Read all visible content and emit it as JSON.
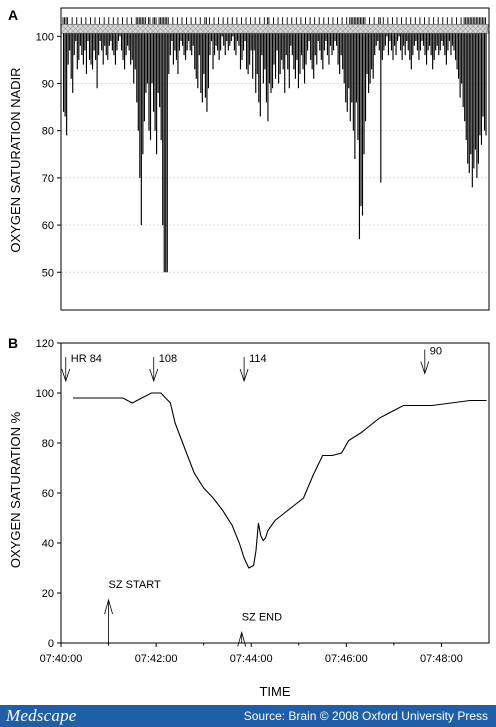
{
  "chart_data": [
    {
      "panel": "A",
      "type": "bar",
      "ylabel": "OXYGEN SATURATION NADIR",
      "ylim": [
        42,
        106
      ],
      "yticks": [
        50,
        60,
        70,
        80,
        90,
        100
      ],
      "grid": true,
      "baseline": 101.5,
      "values": [
        84,
        83,
        79,
        94,
        97,
        91,
        88,
        96,
        99,
        93,
        95,
        98,
        96,
        94,
        97,
        92,
        99,
        95,
        94,
        93,
        97,
        95,
        89,
        96,
        99,
        97,
        94,
        98,
        96,
        95,
        98,
        99,
        97,
        96,
        94,
        97,
        99,
        100,
        97,
        95,
        93,
        96,
        98,
        97,
        94,
        95,
        90,
        93,
        86,
        80,
        70,
        60,
        75,
        82,
        88,
        90,
        80,
        78,
        90,
        84,
        80,
        75,
        88,
        85,
        78,
        60,
        50,
        50,
        50,
        92,
        96,
        99,
        94,
        97,
        95,
        92,
        97,
        99,
        98,
        96,
        95,
        97,
        99,
        97,
        96,
        98,
        93,
        91,
        89,
        96,
        88,
        86,
        92,
        87,
        84,
        89,
        96,
        99,
        93,
        96,
        98,
        97,
        95,
        97,
        100,
        98,
        96,
        99,
        97,
        98,
        99,
        100,
        97,
        96,
        99,
        98,
        93,
        95,
        97,
        99,
        93,
        92,
        94,
        97,
        91,
        97,
        88,
        92,
        86,
        83,
        96,
        90,
        93,
        86,
        82,
        90,
        88,
        89,
        94,
        91,
        97,
        90,
        92,
        95,
        93,
        88,
        96,
        93,
        89,
        98,
        96,
        93,
        91,
        95,
        89,
        92,
        96,
        93,
        90,
        94,
        97,
        99,
        95,
        93,
        91,
        96,
        94,
        99,
        97,
        95,
        93,
        97,
        99,
        96,
        94,
        98,
        96,
        97,
        99,
        98,
        94,
        92,
        96,
        93,
        90,
        86,
        84,
        89,
        82,
        86,
        80,
        74,
        86,
        78,
        57,
        64,
        62,
        75,
        82,
        92,
        88,
        90,
        93,
        91,
        96,
        98,
        99,
        97,
        69,
        95,
        97,
        98,
        100,
        96,
        99,
        97,
        95,
        98,
        96,
        99,
        100,
        97,
        95,
        98,
        96,
        99,
        97,
        95,
        93,
        96,
        98,
        99,
        97,
        95,
        97,
        99,
        98,
        96,
        94,
        97,
        98,
        96,
        93,
        95,
        97,
        98,
        96,
        97,
        99,
        98,
        96,
        94,
        97,
        99,
        96,
        98,
        97,
        95,
        93,
        91,
        87,
        90,
        85,
        82,
        78,
        73,
        71,
        75,
        68,
        72,
        76,
        70,
        73,
        79,
        77,
        83,
        80,
        79
      ]
    },
    {
      "panel": "B",
      "type": "line",
      "xlabel": "TIME",
      "ylabel": "OXYGEN SATURATION %",
      "ylim": [
        0,
        120
      ],
      "xlim_min": [
        0,
        9
      ],
      "xticks": [
        "07:40:00",
        "07:42:00",
        "07:44:00",
        "07:46:00",
        "07:48:00"
      ],
      "yticks": [
        0,
        20,
        40,
        60,
        80,
        100,
        120
      ],
      "grid": false,
      "x": [
        0.25,
        0.8,
        1.3,
        1.5,
        1.7,
        1.9,
        2.1,
        2.3,
        2.4,
        2.6,
        2.8,
        3.0,
        3.2,
        3.4,
        3.6,
        3.75,
        3.85,
        3.95,
        4.05,
        4.1,
        4.15,
        4.2,
        4.25,
        4.3,
        4.35,
        4.5,
        4.7,
        4.9,
        5.1,
        5.3,
        5.5,
        5.7,
        5.9,
        6.05,
        6.3,
        6.5,
        6.7,
        7.0,
        7.2,
        7.5,
        7.8,
        8.2,
        8.6,
        8.95
      ],
      "y": [
        98,
        98,
        98,
        96,
        98,
        100,
        100,
        96,
        88,
        78,
        68,
        62,
        58,
        53,
        47,
        40,
        34,
        30,
        31,
        37,
        48,
        43,
        41,
        42,
        45,
        49,
        52,
        55,
        58,
        67,
        75,
        75,
        76,
        81,
        84,
        87,
        90,
        93,
        95,
        95,
        95,
        96,
        97,
        97
      ],
      "markers": [
        {
          "label": "HR 84",
          "x": 0.1,
          "y": 112,
          "direction": "down"
        },
        {
          "label": "108",
          "x": 1.95,
          "y": 112,
          "direction": "down"
        },
        {
          "label": "114",
          "x": 3.85,
          "y": 112,
          "direction": "down"
        },
        {
          "label": "90",
          "x": 7.65,
          "y": 115,
          "direction": "down"
        },
        {
          "label": "SZ START",
          "x": 1.0,
          "y": 22,
          "direction": "up"
        },
        {
          "label": "SZ END",
          "x": 3.8,
          "y": 9,
          "direction": "up"
        }
      ]
    }
  ],
  "panels": {
    "a_label": "A",
    "b_label": "B"
  },
  "footer": {
    "logo": "Medscape",
    "source": "Source: Brain © 2008 Oxford University Press"
  }
}
